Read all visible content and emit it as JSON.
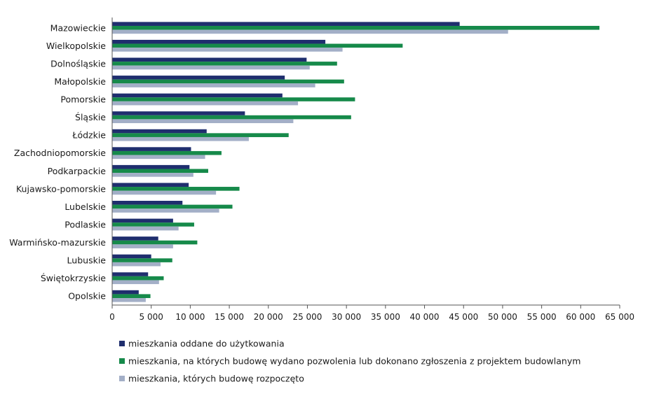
{
  "chart_data": {
    "type": "bar",
    "orientation": "horizontal",
    "title": "",
    "xlabel": "",
    "ylabel": "",
    "xlim": [
      0,
      65000
    ],
    "x_ticks": [
      0,
      5000,
      10000,
      15000,
      20000,
      25000,
      30000,
      35000,
      40000,
      45000,
      50000,
      55000,
      60000,
      65000
    ],
    "x_tick_labels": [
      "0",
      "5 000",
      "10 000",
      "15 000",
      "20 000",
      "25 000",
      "30 000",
      "35 000",
      "40 000",
      "45 000",
      "50 000",
      "55 000",
      "60 000",
      "65 000"
    ],
    "grid": false,
    "legend_position": "bottom",
    "categories": [
      "Mazowieckie",
      "Wielkopolskie",
      "Dolnośląskie",
      "Małopolskie",
      "Pomorskie",
      "Śląskie",
      "Łódzkie",
      "Zachodniopomorskie",
      "Podkarpackie",
      "Kujawsko-pomorskie",
      "Lubelskie",
      "Podlaskie",
      "Warmińsko-mazurskie",
      "Lubuskie",
      "Świętokrzyskie",
      "Opolskie"
    ],
    "series": [
      {
        "name": "mieszkania oddane do użytkowania",
        "color": "#1f2e6e",
        "values": [
          44500,
          27300,
          24900,
          22100,
          21800,
          17000,
          12100,
          10100,
          9900,
          9800,
          9000,
          7800,
          5900,
          5000,
          4600,
          3400
        ]
      },
      {
        "name": "mieszkania, na których budowę wydano pozwolenia lub dokonano zgłoszenia z projektem budowlanym",
        "color": "#168a4a",
        "values": [
          62400,
          37200,
          28800,
          29700,
          31100,
          30600,
          22600,
          14000,
          12300,
          16300,
          15400,
          10500,
          10900,
          7700,
          6600,
          4900
        ]
      },
      {
        "name": "mieszkania, których budowę rozpoczęto",
        "color": "#a3afc7",
        "values": [
          50700,
          29500,
          25300,
          26000,
          23800,
          23200,
          17500,
          11900,
          10400,
          13300,
          13700,
          8500,
          7800,
          6200,
          6000,
          4300
        ]
      }
    ]
  }
}
